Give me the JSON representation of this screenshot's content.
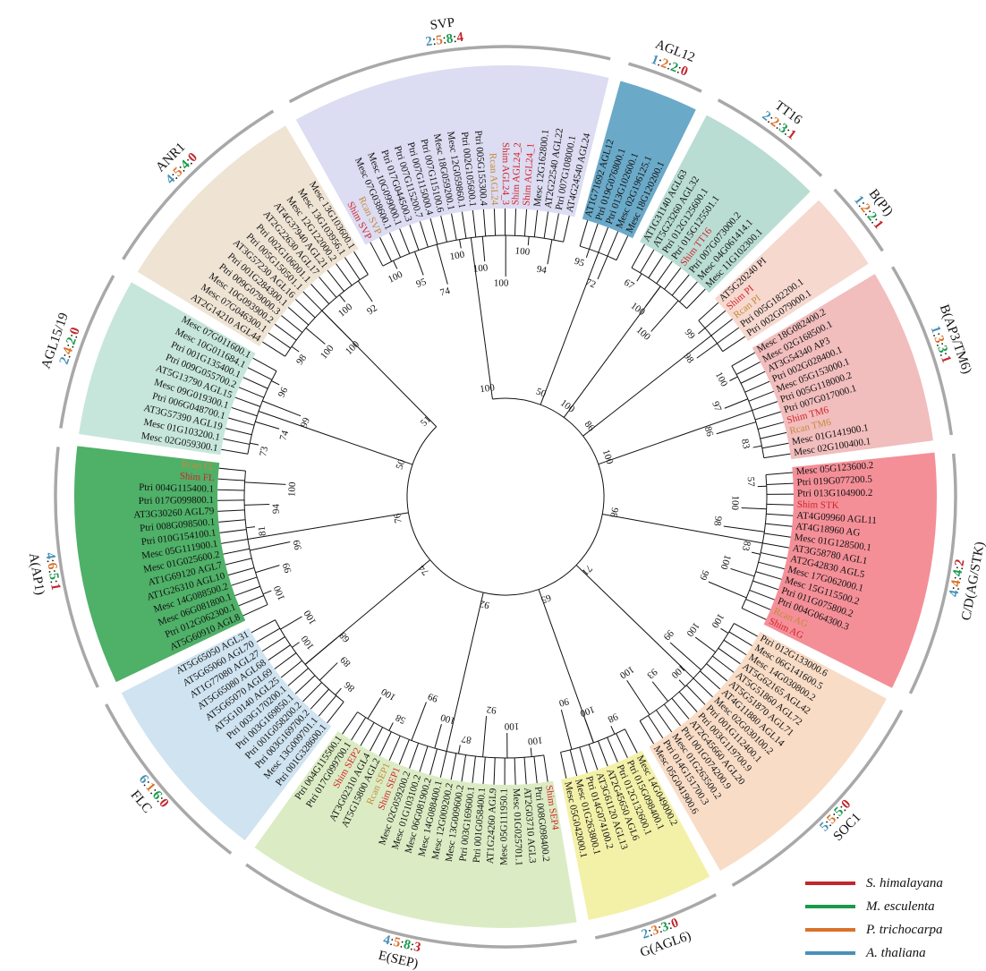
{
  "colors": {
    "s_himalayana": "#c1272d",
    "m_esculenta": "#1a9a4b",
    "p_trichocarpa": "#d9722a",
    "a_thaliana": "#4a90b8"
  },
  "legend": [
    {
      "label": "S. himalayana",
      "color": "#c1272d"
    },
    {
      "label": "M. esculenta",
      "color": "#1a9a4b"
    },
    {
      "label": "P. trichocarpa",
      "color": "#d9722a"
    },
    {
      "label": "A. thaliana",
      "color": "#4a90b8"
    }
  ],
  "clades": [
    {
      "name": "SVP",
      "counts": [
        "2",
        "5",
        "8",
        "4"
      ],
      "color": "#dcdcf2",
      "leaves": [
        "Shim SVP",
        "Rcan SVP",
        "Mesc 07G038600.1",
        "Mesc 10G099000.1",
        "Ptri 017G044500.3",
        "Ptri 007G115200.7",
        "Ptri 007G115000.4",
        "Ptri 007G115100.6",
        "Mesc 18G059200.1",
        "Mesc 12G059860.1",
        "Ptri 002G105600.1",
        "Ptri 005G155300.4",
        "Rcan AGL24",
        "Shim AGL24_3",
        "Shim AGL24_2",
        "Shim AGL24_1",
        "Mesc 12G162800.1",
        "AT2G22540 AGL22",
        "Ptri 007G108000.1",
        "AT4G24540 AGL24"
      ]
    },
    {
      "name": "AGL12",
      "counts": [
        "1",
        "2",
        "2",
        "0"
      ],
      "color": "#6aa9c8",
      "leaves": [
        "AT1G71692 AGL12",
        "Ptri 019G076800.1",
        "Ptri 013G102600.1",
        "Mesc 02G196125.1",
        "Mesc 18G120200.1"
      ]
    },
    {
      "name": "TT16",
      "counts": [
        "2",
        "2",
        "3",
        "1"
      ],
      "color": "#b9ddd3",
      "leaves": [
        "AT1G31140 AGL63",
        "AT5G23260 AGL32",
        "Ptri 012G125600.1",
        "Ptri 015G125501.1",
        "Shim TT16",
        "Ptri 007G073000.2",
        "Mesc 04G061414.1",
        "Mesc 11G102300.1"
      ]
    },
    {
      "name": "B(PI)",
      "counts": [
        "1",
        "2",
        "2",
        "1"
      ],
      "color": "#f6d8cf",
      "leaves": [
        "AT5G20240 PI",
        "Shim PI",
        "Rcan PI",
        "Ptri 005G182200.1",
        "Ptri 002G079000.1"
      ]
    },
    {
      "name": "B(AP3/TM6)",
      "counts": [
        "1",
        "3",
        "3",
        "1"
      ],
      "color": "#f1bdbd",
      "leaves": [
        "Mesc 18G082400.2",
        "Mesc 02G168500.1",
        "AT3G54340 AP3",
        "Ptri 002G028400.1",
        "Mesc 05G153000.1",
        "Ptri 005G118000.2",
        "Ptri 007G017000.1",
        "Shim TM6",
        "Rcan TM6",
        "Mesc 01G141900.1",
        "Mesc 02G100400.1"
      ]
    },
    {
      "name": "C/D(AG/STK)",
      "counts": [
        "4",
        "4",
        "4",
        "2"
      ],
      "color": "#f48f98",
      "leaves": [
        "Mesc 05G123600.2",
        "Ptri 019G077200.5",
        "Ptri 013G104900.2",
        "Shim STK",
        "AT4G09960 AGL11",
        "AT4G18960 AG",
        "Mesc 01G128500.1",
        "AT3G58780 AGL1",
        "AT2G42830 AGL5",
        "Mesc 17G062000.1",
        "Mesc 15G115500.2",
        "Ptri 011G075800.2",
        "Ptri 004G064300.3",
        "Rcan AG",
        "Shim AG"
      ]
    },
    {
      "name": "SOC1",
      "counts": [
        "5",
        "5",
        "5",
        "0"
      ],
      "color": "#f8dcc6",
      "leaves": [
        "Ptri 012G133000.6",
        "Mesc 06G141600.5",
        "Mesc 14G030800.2",
        "AT5G62165 AGL42",
        "AT5G51860 AGL72",
        "AT5G51870 AGL71",
        "AT4G11880 AGL14",
        "Mesc 02G030100.2",
        "Ptri 001G112400.1",
        "Ptri 003G119700.9",
        "AT2G45660 AGL20",
        "Ptri 001G074200.9",
        "Mesc 01G263500.2",
        "Ptri 014G151700.3",
        "Mesc 05G041900.6"
      ]
    },
    {
      "name": "G(AGL6)",
      "counts": [
        "2",
        "3",
        "3",
        "0"
      ],
      "color": "#f3f1a8",
      "leaves": [
        "Mesc 14G049000.2",
        "Ptri 015G098400.1",
        "Ptri 012G132600.1",
        "AT2G45650 AGL6",
        "AT3G61120 AGL13",
        "Ptri 014G074100.2",
        "Mesc 01G263800.1",
        "Mesc 05G042000.1"
      ]
    },
    {
      "name": "E(SEP)",
      "counts": [
        "4",
        "5",
        "8",
        "3"
      ],
      "color": "#dbecc4",
      "leaves": [
        "Shim SEP4",
        "Ptri 008G098400.2",
        "AT2G03710 AGL3",
        "Mesc 01G025701.1",
        "Mesc 05G111950.1",
        "AT1G24260 AGL9",
        "Ptri 001G058400.1",
        "Ptri 003G169600.1",
        "Mesc 13G009600.2",
        "Mesc 12G009200.2",
        "Mesc 14G088400.1",
        "Mesc 06G081900.2",
        "Mesc 01G103100.2",
        "Mesc 02G059200.2",
        "Shim SEP1",
        "Rcan SEP1",
        "AT5G15800 AGL2",
        "AT3G02310 AGL4",
        "Shim SEP2",
        "Ptri 017G099700.1",
        "Ptri 004G115500.1"
      ]
    },
    {
      "name": "FLC",
      "counts": [
        "6",
        "1",
        "6",
        "0"
      ],
      "color": "#cfe3f0",
      "leaves": [
        "Ptri 001G328600.1",
        "Mesc 13G009701.1",
        "Ptri 003G169700.2",
        "Ptri 001G058200.2",
        "Ptri 003G169850.1",
        "Ptri 003G170200.1",
        "AT5G10140 AGL25",
        "AT5G65070 AGL69",
        "AT5G65080 AGL68",
        "AT1G77080 AGL27",
        "AT5G65060 AGL70",
        "AT5G65050 AGL31"
      ]
    },
    {
      "name": "A(AP1)",
      "counts": [
        "4",
        "6",
        "5",
        "1"
      ],
      "color": "#4fb068",
      "leaves": [
        "AT5G60910 AGL8",
        "Ptri 012G062300.1",
        "Mesc 06G081800.1",
        "Mesc 14G088500.2",
        "AT1G26310 AGL10",
        "AT1G69120 AGL7",
        "Mesc 01G025600.2",
        "Mesc 05G111900.1",
        "Ptri 010G154100.1",
        "Ptri 008G098500.1",
        "AT3G30260 AGL79",
        "Ptri 017G099800.1",
        "Ptri 004G115400.1",
        "Shim FL",
        "Rcan FL"
      ]
    },
    {
      "name": "AGL15/19",
      "counts": [
        "2",
        "4",
        "2",
        "0"
      ],
      "color": "#c7e6db",
      "leaves": [
        "Mesc 02G059300.1",
        "Mesc 01G103200.1",
        "AT3G57390 AGL19",
        "Ptri 006G048700.1",
        "Mesc 09G019300.1",
        "AT5G13790 AGL15",
        "Ptri 009G055700.2",
        "Ptri 001G135400.1",
        "Mesc 10G011684.1",
        "Mesc 07G011600.1"
      ]
    },
    {
      "name": "ANR1",
      "counts": [
        "4",
        "5",
        "4",
        "0"
      ],
      "color": "#efe4d4",
      "leaves": [
        "AT2G14210 AGL44",
        "Mesc 07G046300.1",
        "Mesc 10G093900.2",
        "Ptri 009G079000.3",
        "Ptri 001G284300.1",
        "AT3G57230 AGL16",
        "Ptri 005G150501.1",
        "Ptri 002G106001.1",
        "AT2G22630 AGL17",
        "AT4G37940 AGL21",
        "Mesc 12G122000.2",
        "Mesc 13G103956.1",
        "Mesc 13G103600.1"
      ]
    }
  ],
  "bootstrap_values": [
    "100",
    "95",
    "74",
    "100",
    "100",
    "100",
    "100",
    "94",
    "95",
    "72",
    "67",
    "100",
    "100",
    "99",
    "98",
    "100",
    "97",
    "86",
    "83",
    "57",
    "100",
    "98",
    "83",
    "100",
    "99",
    "100",
    "100",
    "99",
    "100",
    "93",
    "100",
    "98",
    "100",
    "90",
    "100",
    "100",
    "92",
    "87",
    "100",
    "99",
    "58",
    "100",
    "86",
    "89",
    "68",
    "100",
    "100",
    "100",
    "99",
    "99",
    "81",
    "94",
    "100",
    "73",
    "74",
    "99",
    "96",
    "98",
    "100",
    "100",
    "100",
    "92",
    "100",
    "50",
    "100",
    "86",
    "100",
    "98",
    "71",
    "65",
    "92",
    "74",
    "76",
    "50",
    "51",
    "100",
    "100",
    "100",
    "100",
    "89",
    "75",
    "65",
    "53",
    "56",
    "51",
    "99",
    "95",
    "100",
    "100",
    "100",
    "100",
    "98",
    "94",
    "75",
    "99",
    "100",
    "79",
    "80",
    "97",
    "96",
    "97",
    "100",
    "100",
    "100",
    "100",
    "100",
    "98",
    "100"
  ]
}
